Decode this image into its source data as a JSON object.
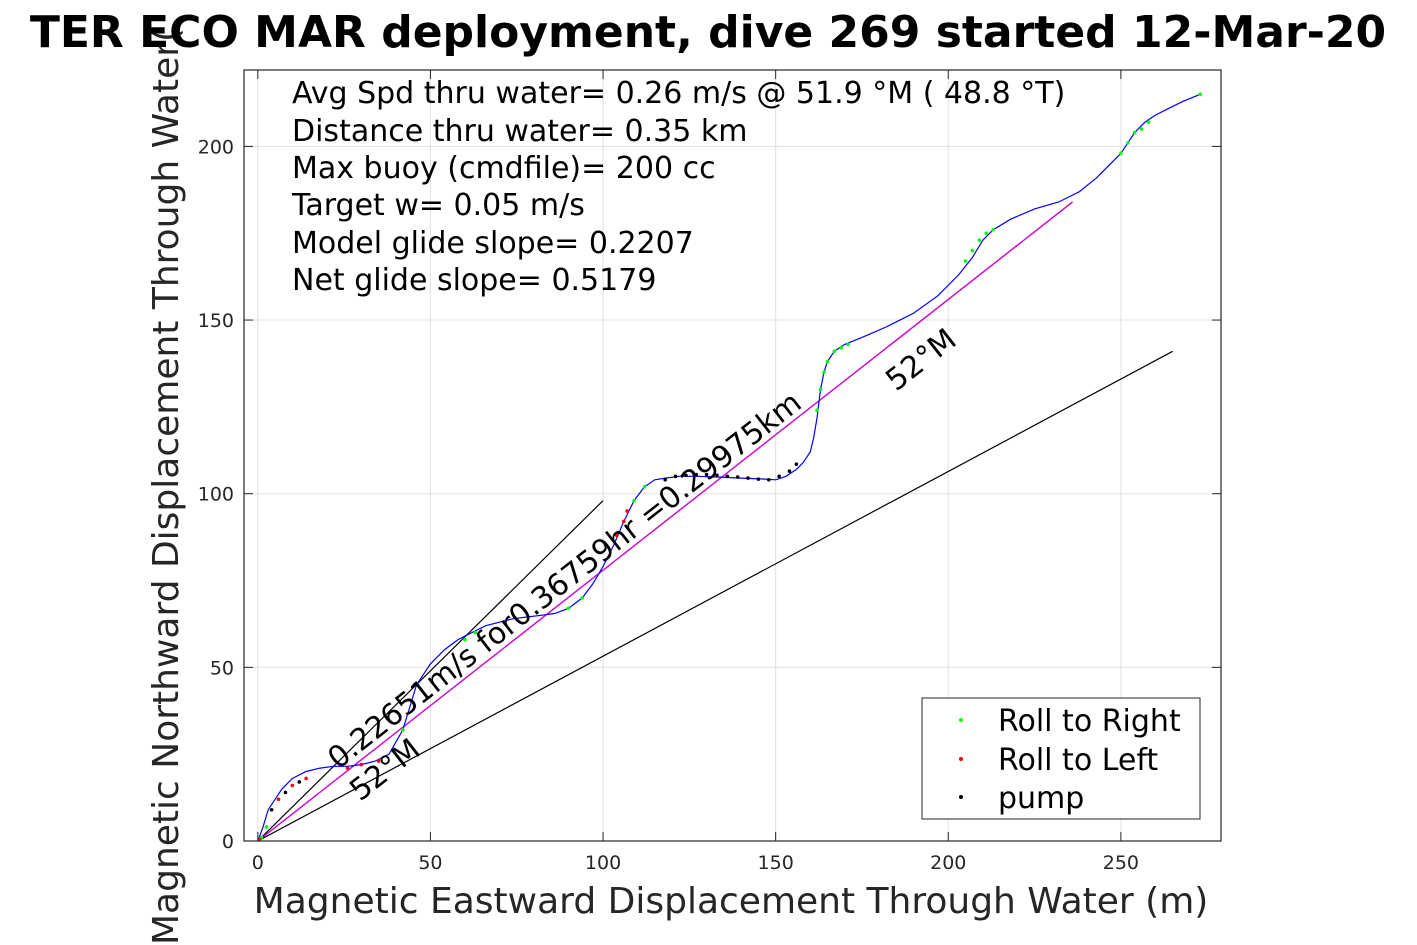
{
  "chart_data": {
    "type": "line",
    "title": "TER ECO MAR deployment, dive 269 started 12-Mar-20",
    "xlabel": "Magnetic Eastward Displacement Through Water (m)",
    "ylabel": "Magnetic Northward Displacement Through Water(",
    "xlim": [
      -4,
      279
    ],
    "ylim": [
      0,
      222
    ],
    "xticks": [
      0,
      50,
      100,
      150,
      200,
      250
    ],
    "yticks": [
      0,
      50,
      100,
      150,
      200
    ],
    "grid": true,
    "info_lines": [
      "Avg Spd thru water=  0.26 m/s @  51.9 °M ( 48.8 °T)",
      "Distance thru water=  0.35 km",
      "Max buoy (cmdfile)= 200 cc",
      "Target w= 0.05 m/s",
      "Model glide slope= 0.2207",
      "Net glide slope= 0.5179"
    ],
    "annotations": {
      "speed_label": "0.22651m/s for0.36759hr =0.29975km",
      "heading_label_upper": "52°M",
      "heading_label_lower": "52°M"
    },
    "colors": {
      "track": "#0000ff",
      "heading_line": "#cc00cc",
      "bounds": "#000000",
      "roll_right": "#00ff00",
      "roll_left": "#ff0000",
      "pump": "#000000",
      "grid": "#e0e0e0"
    },
    "track": {
      "x": [
        0,
        1.5,
        3,
        5,
        7,
        10,
        14,
        18,
        22,
        26,
        30,
        34,
        38,
        42,
        46,
        50,
        54,
        58,
        62,
        66,
        70,
        74,
        78,
        82,
        86,
        90,
        94,
        97,
        100,
        103,
        106,
        109,
        112,
        115,
        118,
        122,
        127,
        133,
        140,
        147,
        150,
        153,
        156,
        158,
        160,
        161,
        162,
        163,
        164,
        165,
        167,
        170,
        175,
        182,
        190,
        197,
        203,
        207,
        210,
        213,
        218,
        225,
        232,
        238,
        243,
        247,
        250,
        252,
        254,
        257,
        260,
        264,
        268,
        273
      ],
      "y": [
        0,
        4,
        9,
        12,
        15,
        18,
        20,
        21,
        21.5,
        21.5,
        22,
        23,
        25,
        32,
        45,
        51,
        55,
        58,
        60,
        62,
        63,
        64,
        64.5,
        65,
        65.5,
        67,
        70,
        74,
        79,
        85,
        92,
        98,
        102,
        104,
        104.5,
        105,
        105,
        104.8,
        104.5,
        104.2,
        104,
        105,
        107,
        109,
        112,
        116,
        122,
        130,
        135,
        138,
        141,
        143,
        145,
        148,
        152,
        157,
        163,
        168,
        173,
        176,
        179,
        182,
        184,
        187,
        191,
        195,
        198,
        201,
        204,
        207,
        209,
        211,
        213,
        215
      ]
    },
    "roll_right": {
      "x": [
        1,
        2.5,
        42,
        60,
        63,
        90,
        94,
        109,
        112,
        162,
        163,
        164,
        165,
        167,
        169,
        171,
        205,
        207,
        209,
        211,
        213,
        250,
        252,
        254,
        256,
        258,
        273
      ],
      "y": [
        1,
        4,
        32,
        58,
        60,
        67,
        70,
        98,
        102,
        124,
        130,
        135,
        138,
        141,
        142,
        143,
        167,
        170,
        173,
        175,
        176,
        198,
        201,
        204,
        205,
        207,
        215
      ]
    },
    "roll_left": {
      "x": [
        0.5,
        6,
        10,
        14,
        26,
        30,
        35,
        104,
        106,
        107
      ],
      "y": [
        0.5,
        12,
        16,
        18,
        21,
        22,
        23,
        88,
        92,
        95
      ]
    },
    "pump": {
      "x": [
        4,
        8,
        12,
        118,
        121,
        124,
        127,
        130,
        133,
        136,
        139,
        142,
        145,
        148,
        151,
        154,
        156
      ],
      "y": [
        9,
        14,
        17,
        104,
        105,
        105.3,
        105.5,
        105.5,
        105.3,
        105,
        104.8,
        104.5,
        104.2,
        104,
        105,
        106.5,
        108.5
      ]
    },
    "heading_line": {
      "x": [
        0,
        236
      ],
      "y": [
        0,
        184
      ]
    },
    "bound_upper": {
      "x": [
        0,
        100
      ],
      "y": [
        0,
        98
      ]
    },
    "bound_lower": {
      "x": [
        0,
        265
      ],
      "y": [
        0,
        141
      ]
    },
    "legend": {
      "placement": "bottom-right",
      "entries": [
        {
          "label": "Roll to Right",
          "color": "#00ff00"
        },
        {
          "label": "Roll to Left",
          "color": "#ff0000"
        },
        {
          "label": "pump",
          "color": "#000000"
        }
      ]
    }
  }
}
